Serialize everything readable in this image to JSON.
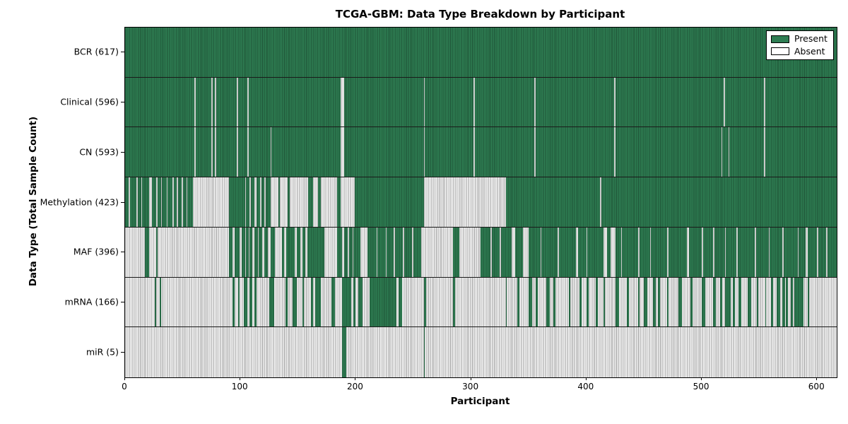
{
  "colors": {
    "present_fill": "#2e7d52",
    "present_edge": "#1e5236",
    "absent_fill": "#f4f4f4",
    "absent_edge": "#9e9e9e",
    "frame": "#000000"
  },
  "chart_data": {
    "type": "heatmap",
    "title": "TCGA-GBM: Data Type Breakdown by Participant",
    "xlabel": "Participant",
    "ylabel": "Data Type (Total Sample Count)",
    "x_max": 617,
    "x_ticks": [
      0,
      100,
      200,
      300,
      400,
      500,
      600
    ],
    "grid": "row-separators",
    "legend_position": "upper-right",
    "legend": [
      {
        "label": "Present",
        "swatch": "#2e7d52"
      },
      {
        "label": "Absent",
        "swatch": "#ffffff"
      }
    ],
    "rows": [
      {
        "key": "bcr",
        "label": "BCR (617)",
        "present_count": 617,
        "base": "present",
        "overrides": []
      },
      {
        "key": "clinical",
        "label": "Clinical (596)",
        "present_count": 596,
        "base": "present",
        "overrides": [
          [
            60,
            61
          ],
          [
            75,
            76
          ],
          [
            78,
            79
          ],
          [
            97,
            98
          ],
          [
            106,
            107
          ],
          [
            187,
            190
          ],
          [
            259,
            260
          ],
          [
            302,
            303
          ],
          [
            355,
            356
          ],
          [
            424,
            425
          ],
          [
            519,
            520
          ],
          [
            554,
            555
          ]
        ]
      },
      {
        "key": "cn",
        "label": "CN (593)",
        "present_count": 593,
        "base": "present",
        "overrides": [
          [
            60,
            61
          ],
          [
            75,
            76
          ],
          [
            78,
            79
          ],
          [
            97,
            98
          ],
          [
            106,
            107
          ],
          [
            126,
            127
          ],
          [
            187,
            190
          ],
          [
            259,
            260
          ],
          [
            302,
            303
          ],
          [
            355,
            356
          ],
          [
            424,
            425
          ],
          [
            517,
            518
          ],
          [
            523,
            524
          ],
          [
            554,
            555
          ]
        ]
      },
      {
        "key": "methylation",
        "label": "Methylation (423)",
        "present_count": 423,
        "base": "present",
        "overrides": [
          [
            3,
            4
          ],
          [
            10,
            11
          ],
          [
            14,
            15
          ],
          [
            21,
            23
          ],
          [
            27,
            28
          ],
          [
            31,
            32
          ],
          [
            36,
            37
          ],
          [
            41,
            42
          ],
          [
            45,
            46
          ],
          [
            49,
            50
          ],
          [
            53,
            54
          ],
          [
            59,
            90
          ],
          [
            104,
            105
          ],
          [
            108,
            109
          ],
          [
            112,
            114
          ],
          [
            117,
            118
          ],
          [
            121,
            122
          ],
          [
            126,
            133
          ],
          [
            134,
            141
          ],
          [
            143,
            159
          ],
          [
            163,
            167
          ],
          [
            170,
            184
          ],
          [
            187,
            199
          ],
          [
            259,
            330
          ],
          [
            412,
            413
          ]
        ]
      },
      {
        "key": "maf",
        "label": "MAF (396)",
        "present_count": 396,
        "base": "present",
        "overrides": [
          [
            0,
            17
          ],
          [
            21,
            27
          ],
          [
            28,
            90
          ],
          [
            93,
            95
          ],
          [
            99,
            101
          ],
          [
            104,
            105
          ],
          [
            107,
            108
          ],
          [
            110,
            112
          ],
          [
            115,
            116
          ],
          [
            119,
            121
          ],
          [
            124,
            126
          ],
          [
            130,
            136
          ],
          [
            138,
            140
          ],
          [
            147,
            149
          ],
          [
            152,
            154
          ],
          [
            156,
            158
          ],
          [
            173,
            184
          ],
          [
            188,
            190
          ],
          [
            193,
            194
          ],
          [
            197,
            198
          ],
          [
            204,
            210
          ],
          [
            218,
            219
          ],
          [
            226,
            227
          ],
          [
            233,
            234
          ],
          [
            241,
            242
          ],
          [
            249,
            250
          ],
          [
            257,
            284
          ],
          [
            290,
            308
          ],
          [
            317,
            318
          ],
          [
            325,
            326
          ],
          [
            335,
            338
          ],
          [
            345,
            350
          ],
          [
            360,
            361
          ],
          [
            375,
            376
          ],
          [
            391,
            393
          ],
          [
            400,
            401
          ],
          [
            415,
            418
          ],
          [
            421,
            425
          ],
          [
            430,
            431
          ],
          [
            445,
            446
          ],
          [
            455,
            456
          ],
          [
            470,
            471
          ],
          [
            487,
            489
          ],
          [
            500,
            501
          ],
          [
            510,
            511
          ],
          [
            520,
            521
          ],
          [
            530,
            531
          ],
          [
            546,
            547
          ],
          [
            558,
            559
          ],
          [
            570,
            571
          ],
          [
            583,
            584
          ],
          [
            590,
            592
          ],
          [
            600,
            601
          ],
          [
            608,
            609
          ]
        ]
      },
      {
        "key": "mrna",
        "label": "mRNA (166)",
        "present_count": 166,
        "base": "absent",
        "overrides": [
          [
            26,
            27
          ],
          [
            30,
            31
          ],
          [
            93,
            95
          ],
          [
            98,
            99
          ],
          [
            103,
            106
          ],
          [
            108,
            110
          ],
          [
            112,
            114
          ],
          [
            125,
            129
          ],
          [
            139,
            141
          ],
          [
            145,
            149
          ],
          [
            154,
            155
          ],
          [
            161,
            163
          ],
          [
            165,
            170
          ],
          [
            179,
            182
          ],
          [
            188,
            196
          ],
          [
            198,
            200
          ],
          [
            202,
            206
          ],
          [
            212,
            235
          ],
          [
            237,
            240
          ],
          [
            259,
            261
          ],
          [
            284,
            286
          ],
          [
            330,
            331
          ],
          [
            340,
            342
          ],
          [
            350,
            353
          ],
          [
            356,
            358
          ],
          [
            365,
            368
          ],
          [
            371,
            373
          ],
          [
            385,
            386
          ],
          [
            394,
            396
          ],
          [
            400,
            402
          ],
          [
            408,
            410
          ],
          [
            415,
            416
          ],
          [
            425,
            428
          ],
          [
            435,
            437
          ],
          [
            445,
            446
          ],
          [
            450,
            453
          ],
          [
            458,
            460
          ],
          [
            462,
            464
          ],
          [
            470,
            471
          ],
          [
            480,
            483
          ],
          [
            490,
            492
          ],
          [
            500,
            503
          ],
          [
            510,
            512
          ],
          [
            516,
            518
          ],
          [
            520,
            525
          ],
          [
            527,
            529
          ],
          [
            532,
            534
          ],
          [
            540,
            543
          ],
          [
            548,
            549
          ],
          [
            555,
            556
          ],
          [
            560,
            562
          ],
          [
            565,
            568
          ],
          [
            570,
            572
          ],
          [
            573,
            575
          ],
          [
            577,
            579
          ],
          [
            580,
            588
          ],
          [
            592,
            593
          ]
        ]
      },
      {
        "key": "mir",
        "label": "miR (5)",
        "present_count": 5,
        "base": "absent",
        "overrides": [
          [
            188,
            192
          ],
          [
            259,
            260
          ]
        ]
      }
    ]
  }
}
